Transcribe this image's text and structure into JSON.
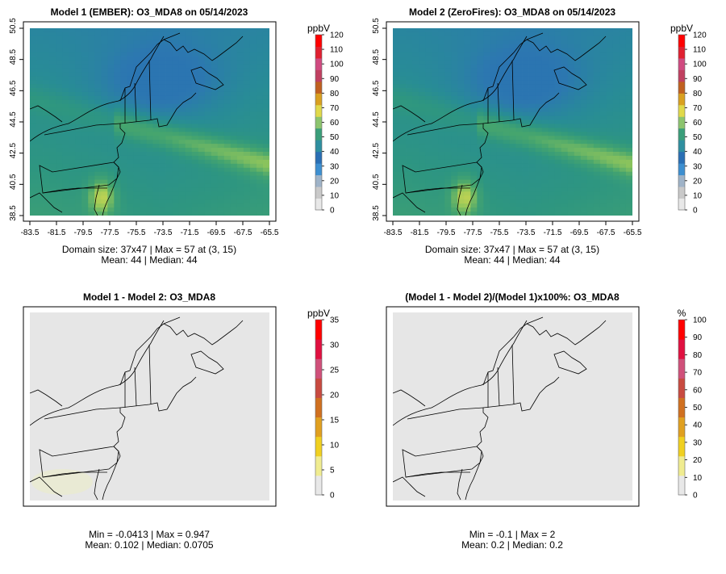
{
  "chart_data": [
    {
      "type": "heatmap",
      "title": "Model 1 (EMBER): O3_MDA8 on 05/14/2023",
      "ylabel_ticks": [
        "38.5",
        "40.5",
        "42.5",
        "44.5",
        "46.5",
        "48.5",
        "50.5"
      ],
      "xlabel_ticks": [
        "-83.5",
        "-81.5",
        "-79.5",
        "-77.5",
        "-75.5",
        "-73.5",
        "-71.5",
        "-69.5",
        "-67.5",
        "-65.5"
      ],
      "colorbar": {
        "unit": "ppbV",
        "ticks": [
          "0",
          "10",
          "20",
          "30",
          "40",
          "50",
          "60",
          "70",
          "80",
          "90",
          "100",
          "110",
          "120"
        ],
        "range": [
          0,
          120
        ],
        "scheme": "ozone"
      },
      "stats": [
        "Domain size: 37x47 | Max = 57 at (3, 15)",
        "Mean: 44 |  Median: 44"
      ],
      "grid": false,
      "value_range": [
        38,
        57
      ]
    },
    {
      "type": "heatmap",
      "title": "Model 2 (ZeroFires): O3_MDA8 on 05/14/2023",
      "ylabel_ticks": [
        "38.5",
        "40.5",
        "42.5",
        "44.5",
        "46.5",
        "48.5",
        "50.5"
      ],
      "xlabel_ticks": [
        "-83.5",
        "-81.5",
        "-79.5",
        "-77.5",
        "-75.5",
        "-73.5",
        "-71.5",
        "-69.5",
        "-67.5",
        "-65.5"
      ],
      "colorbar": {
        "unit": "ppbV",
        "ticks": [
          "0",
          "10",
          "20",
          "30",
          "40",
          "50",
          "60",
          "70",
          "80",
          "90",
          "100",
          "110",
          "120"
        ],
        "range": [
          0,
          120
        ],
        "scheme": "ozone"
      },
      "stats": [
        "Domain size: 37x47 | Max = 57 at (3, 15)",
        "Mean: 44 |  Median: 44"
      ],
      "grid": false,
      "value_range": [
        38,
        57
      ]
    },
    {
      "type": "heatmap",
      "title": "Model 1 - Model 2: O3_MDA8",
      "colorbar": {
        "unit": "ppbV",
        "ticks": [
          "0",
          "5",
          "10",
          "15",
          "20",
          "25",
          "30",
          "35"
        ],
        "range": [
          0,
          35
        ],
        "scheme": "diff"
      },
      "stats": [
        "Min = -0.0413 | Max = 0.947",
        "Mean: 0.102 |  Median: 0.0705"
      ],
      "grid": false,
      "value_range": [
        -0.0413,
        0.947
      ]
    },
    {
      "type": "heatmap",
      "title": "(Model 1 - Model 2)/(Model 1)x100%: O3_MDA8",
      "colorbar": {
        "unit": "%",
        "ticks": [
          "0",
          "10",
          "20",
          "30",
          "40",
          "50",
          "60",
          "70",
          "80",
          "90",
          "100"
        ],
        "range": [
          0,
          100
        ],
        "scheme": "diff"
      },
      "stats": [
        "Min = -0.1 | Max = 2",
        "Mean: 0.2 |  Median: 0.2"
      ],
      "grid": false,
      "value_range": [
        -0.1,
        2
      ]
    }
  ],
  "colors": {
    "ozone_scale": [
      "#e8e8e8",
      "#c9c9c9",
      "#9fb3c8",
      "#3d8fd0",
      "#2a6fb4",
      "#2e8fa0",
      "#3a9e7a",
      "#8cc46e",
      "#e0d94a",
      "#d9a020",
      "#c06020",
      "#c04060",
      "#d04a80",
      "#e02030",
      "#ff0000"
    ],
    "diff_scale": [
      "#e8e8e8",
      "#f0ec90",
      "#f0d020",
      "#e0a020",
      "#d07020",
      "#c84a40",
      "#d0507a",
      "#e01040",
      "#ff0000"
    ],
    "map_background": "#e6e6e6",
    "border": "#000000"
  }
}
